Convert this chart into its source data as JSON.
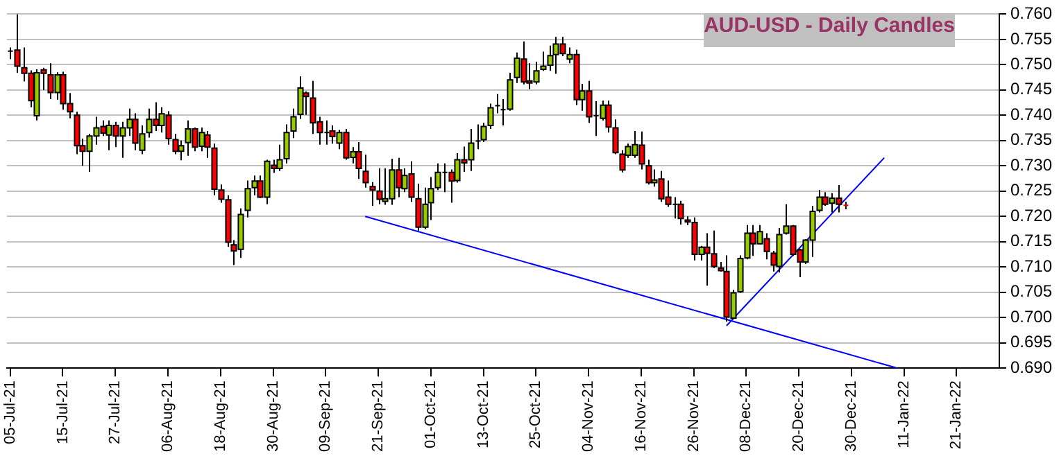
{
  "chart_data": {
    "type": "candlestick",
    "title": "AUD-USD - Daily Candles",
    "categories": [
      "05-Jul-21",
      null,
      null,
      null,
      null,
      null,
      null,
      null,
      "15-Jul-21",
      null,
      null,
      null,
      null,
      null,
      null,
      null,
      "27-Jul-21",
      null,
      null,
      null,
      null,
      null,
      null,
      null,
      "06-Aug-21",
      null,
      null,
      null,
      null,
      null,
      null,
      null,
      "18-Aug-21",
      null,
      null,
      null,
      null,
      null,
      null,
      null,
      "30-Aug-21",
      null,
      null,
      null,
      null,
      null,
      null,
      null,
      "09-Sep-21",
      null,
      null,
      null,
      null,
      null,
      null,
      null,
      "21-Sep-21",
      null,
      null,
      null,
      null,
      null,
      null,
      null,
      "01-Oct-21",
      null,
      null,
      null,
      null,
      null,
      null,
      null,
      "13-Oct-21",
      null,
      null,
      null,
      null,
      null,
      null,
      null,
      "25-Oct-21",
      null,
      null,
      null,
      null,
      null,
      null,
      null,
      "04-Nov-21",
      null,
      null,
      null,
      null,
      null,
      null,
      null,
      "16-Nov-21",
      null,
      null,
      null,
      null,
      null,
      null,
      null,
      "26-Nov-21",
      null,
      null,
      null,
      null,
      null,
      null,
      null,
      "08-Dec-21",
      null,
      null,
      null,
      null,
      null,
      null,
      null,
      "20-Dec-21",
      null,
      null,
      null,
      null,
      null,
      null,
      null,
      "30-Dec-21",
      null,
      null,
      null,
      null,
      null,
      null,
      null,
      "11-Jan-22",
      null,
      null,
      null,
      null,
      null,
      null,
      null,
      "21-Jan-22",
      null,
      null,
      null,
      null,
      null,
      null
    ],
    "ohlc": [
      [
        0.7527,
        0.7534,
        0.7511,
        0.7527
      ],
      [
        0.7529,
        0.76,
        0.7484,
        0.7497
      ],
      [
        0.7494,
        0.7534,
        0.7467,
        0.7483
      ],
      [
        0.7483,
        0.7489,
        0.7416,
        0.7429
      ],
      [
        0.7399,
        0.7491,
        0.739,
        0.7484
      ],
      [
        0.749,
        0.7494,
        0.745,
        0.7483
      ],
      [
        0.748,
        0.7503,
        0.7432,
        0.7445
      ],
      [
        0.7445,
        0.7485,
        0.7431,
        0.748
      ],
      [
        0.748,
        0.7486,
        0.7411,
        0.7423
      ],
      [
        0.7423,
        0.7444,
        0.7394,
        0.7407
      ],
      [
        0.74,
        0.7407,
        0.7323,
        0.734
      ],
      [
        0.734,
        0.7354,
        0.73,
        0.7329
      ],
      [
        0.7329,
        0.7363,
        0.7288,
        0.7359
      ],
      [
        0.7359,
        0.7397,
        0.7342,
        0.7375
      ],
      [
        0.7378,
        0.739,
        0.7359,
        0.7365
      ],
      [
        0.7361,
        0.739,
        0.7331,
        0.738
      ],
      [
        0.738,
        0.7387,
        0.7337,
        0.7359
      ],
      [
        0.7359,
        0.7387,
        0.7316,
        0.7375
      ],
      [
        0.7375,
        0.7413,
        0.7359,
        0.7392
      ],
      [
        0.7392,
        0.7404,
        0.7331,
        0.7345
      ],
      [
        0.7331,
        0.738,
        0.7323,
        0.7363
      ],
      [
        0.7366,
        0.7413,
        0.7356,
        0.7392
      ],
      [
        0.7392,
        0.7426,
        0.7369,
        0.738
      ],
      [
        0.738,
        0.7416,
        0.7366,
        0.7403
      ],
      [
        0.74,
        0.7408,
        0.7342,
        0.7354
      ],
      [
        0.7352,
        0.7363,
        0.7323,
        0.7329
      ],
      [
        0.7329,
        0.735,
        0.7311,
        0.734
      ],
      [
        0.7346,
        0.739,
        0.732,
        0.7373
      ],
      [
        0.7373,
        0.7376,
        0.7329,
        0.7337
      ],
      [
        0.7339,
        0.7376,
        0.7329,
        0.7366
      ],
      [
        0.7361,
        0.7369,
        0.7316,
        0.7337
      ],
      [
        0.7335,
        0.7344,
        0.7242,
        0.7254
      ],
      [
        0.7252,
        0.7263,
        0.7227,
        0.7234
      ],
      [
        0.7233,
        0.7242,
        0.714,
        0.7149
      ],
      [
        0.7144,
        0.7153,
        0.7104,
        0.7132
      ],
      [
        0.7135,
        0.7216,
        0.7118,
        0.7204
      ],
      [
        0.7212,
        0.7271,
        0.7198,
        0.7255
      ],
      [
        0.7257,
        0.7281,
        0.7242,
        0.727
      ],
      [
        0.727,
        0.7281,
        0.7236,
        0.7238
      ],
      [
        0.7238,
        0.7312,
        0.7224,
        0.7309
      ],
      [
        0.7301,
        0.7312,
        0.7286,
        0.7295
      ],
      [
        0.7295,
        0.7342,
        0.729,
        0.7312
      ],
      [
        0.7314,
        0.7382,
        0.7305,
        0.7366
      ],
      [
        0.7369,
        0.7413,
        0.7355,
        0.7397
      ],
      [
        0.7402,
        0.7477,
        0.7393,
        0.7454
      ],
      [
        0.7444,
        0.7447,
        0.7401,
        0.7437
      ],
      [
        0.7434,
        0.7468,
        0.7363,
        0.7385
      ],
      [
        0.7387,
        0.7397,
        0.7342,
        0.7366
      ],
      [
        0.7366,
        0.739,
        0.7342,
        0.7366
      ],
      [
        0.7369,
        0.738,
        0.7344,
        0.7358
      ],
      [
        0.7345,
        0.7371,
        0.7333,
        0.7366
      ],
      [
        0.7366,
        0.7373,
        0.7312,
        0.7316
      ],
      [
        0.7317,
        0.7337,
        0.7305,
        0.7328
      ],
      [
        0.7328,
        0.7347,
        0.7274,
        0.7295
      ],
      [
        0.7289,
        0.7322,
        0.7257,
        0.7267
      ],
      [
        0.7259,
        0.7268,
        0.7221,
        0.7252
      ],
      [
        0.725,
        0.7295,
        0.7224,
        0.7234
      ],
      [
        0.723,
        0.7295,
        0.7223,
        0.7235
      ],
      [
        0.7235,
        0.7314,
        0.7223,
        0.7292
      ],
      [
        0.7292,
        0.7316,
        0.7238,
        0.7257
      ],
      [
        0.7255,
        0.7295,
        0.7248,
        0.7281
      ],
      [
        0.7284,
        0.7309,
        0.7229,
        0.7238
      ],
      [
        0.7235,
        0.7265,
        0.7172,
        0.7179
      ],
      [
        0.7179,
        0.7257,
        0.7175,
        0.7224
      ],
      [
        0.7227,
        0.7278,
        0.7193,
        0.7255
      ],
      [
        0.7257,
        0.7305,
        0.7252,
        0.7287
      ],
      [
        0.7287,
        0.7305,
        0.7248,
        0.7287
      ],
      [
        0.7287,
        0.7293,
        0.7227,
        0.727
      ],
      [
        0.7271,
        0.7325,
        0.7267,
        0.7312
      ],
      [
        0.7312,
        0.7338,
        0.7288,
        0.7306
      ],
      [
        0.7312,
        0.7373,
        0.729,
        0.7345
      ],
      [
        0.7349,
        0.7382,
        0.7333,
        0.7349
      ],
      [
        0.7352,
        0.7385,
        0.7347,
        0.7378
      ],
      [
        0.738,
        0.7423,
        0.7373,
        0.7415
      ],
      [
        0.7419,
        0.7442,
        0.7404,
        0.7419
      ],
      [
        0.7411,
        0.7432,
        0.738,
        0.7411
      ],
      [
        0.7412,
        0.7484,
        0.7409,
        0.747
      ],
      [
        0.7475,
        0.7524,
        0.7464,
        0.7513
      ],
      [
        0.7511,
        0.7546,
        0.7461,
        0.7466
      ],
      [
        0.7468,
        0.7503,
        0.7452,
        0.7464
      ],
      [
        0.7466,
        0.7506,
        0.7461,
        0.7488
      ],
      [
        0.7491,
        0.7526,
        0.7488,
        0.7497
      ],
      [
        0.7499,
        0.7538,
        0.7488,
        0.7518
      ],
      [
        0.752,
        0.7555,
        0.7482,
        0.7541
      ],
      [
        0.7541,
        0.7555,
        0.7517,
        0.7522
      ],
      [
        0.7511,
        0.7534,
        0.7503,
        0.752
      ],
      [
        0.752,
        0.753,
        0.742,
        0.7431
      ],
      [
        0.7431,
        0.7462,
        0.7409,
        0.7448
      ],
      [
        0.7448,
        0.7468,
        0.7385,
        0.7397
      ],
      [
        0.7399,
        0.7428,
        0.7359,
        0.7399
      ],
      [
        0.7394,
        0.7429,
        0.739,
        0.742
      ],
      [
        0.742,
        0.7429,
        0.7366,
        0.7377
      ],
      [
        0.7375,
        0.7392,
        0.7323,
        0.7326
      ],
      [
        0.7323,
        0.7331,
        0.7287,
        0.7292
      ],
      [
        0.7321,
        0.7344,
        0.7316,
        0.7338
      ],
      [
        0.7321,
        0.7369,
        0.7316,
        0.7342
      ],
      [
        0.7341,
        0.7368,
        0.7293,
        0.7304
      ],
      [
        0.73,
        0.7312,
        0.7263,
        0.7267
      ],
      [
        0.7267,
        0.7293,
        0.7259,
        0.7272
      ],
      [
        0.7274,
        0.729,
        0.7229,
        0.7235
      ],
      [
        0.7238,
        0.7271,
        0.7219,
        0.7224
      ],
      [
        0.7224,
        0.7238,
        0.7196,
        0.7224
      ],
      [
        0.7224,
        0.7231,
        0.7184,
        0.7196
      ],
      [
        0.7193,
        0.72,
        0.7183,
        0.7189
      ],
      [
        0.7188,
        0.7198,
        0.7113,
        0.7125
      ],
      [
        0.7125,
        0.7142,
        0.7113,
        0.7139
      ],
      [
        0.7139,
        0.7167,
        0.7063,
        0.7127
      ],
      [
        0.7126,
        0.7172,
        0.7098,
        0.7101
      ],
      [
        0.7098,
        0.711,
        0.7091,
        0.7093
      ],
      [
        0.7091,
        0.7123,
        0.6992,
        0.7001
      ],
      [
        0.6999,
        0.7055,
        0.6997,
        0.7049
      ],
      [
        0.7051,
        0.7123,
        0.7049,
        0.7117
      ],
      [
        0.7118,
        0.7183,
        0.7115,
        0.7167
      ],
      [
        0.7167,
        0.7183,
        0.7122,
        0.7146
      ],
      [
        0.7146,
        0.7183,
        0.7145,
        0.717
      ],
      [
        0.7156,
        0.7167,
        0.7115,
        0.7131
      ],
      [
        0.7127,
        0.7132,
        0.7091,
        0.7104
      ],
      [
        0.7101,
        0.7177,
        0.7089,
        0.7164
      ],
      [
        0.7167,
        0.7224,
        0.7164,
        0.7181
      ],
      [
        0.7181,
        0.7183,
        0.7122,
        0.7125
      ],
      [
        0.7134,
        0.7136,
        0.708,
        0.711
      ],
      [
        0.711,
        0.7155,
        0.7106,
        0.7153
      ],
      [
        0.7153,
        0.7221,
        0.712,
        0.721
      ],
      [
        0.7212,
        0.7252,
        0.7208,
        0.7238
      ],
      [
        0.7238,
        0.7248,
        0.7221,
        0.7224
      ],
      [
        0.7226,
        0.7246,
        0.7208,
        0.7236
      ],
      [
        0.7236,
        0.7262,
        0.7208,
        0.7224
      ],
      [
        0.7222,
        0.7229,
        0.7214,
        0.722
      ],
      null,
      null,
      null,
      null,
      null,
      null,
      null,
      null,
      null,
      null,
      null,
      null,
      null,
      null,
      null,
      null,
      null,
      null,
      null,
      null,
      null,
      null,
      null
    ],
    "colors": [
      "#000000",
      "#ff0000",
      "#ff0000",
      "#ff0000",
      "#99cc00",
      "#ff0000",
      "#ff0000",
      "#99cc00",
      "#ff0000",
      "#ff0000",
      "#ff0000",
      "#ff0000",
      "#99cc00",
      "#99cc00",
      "#ff0000",
      "#99cc00",
      "#ff0000",
      "#99cc00",
      "#99cc00",
      "#ff0000",
      "#99cc00",
      "#99cc00",
      "#ff0000",
      "#99cc00",
      "#ff0000",
      "#ff0000",
      "#99cc00",
      "#99cc00",
      "#ff0000",
      "#99cc00",
      "#ff0000",
      "#ff0000",
      "#ff0000",
      "#ff0000",
      "#ff0000",
      "#99cc00",
      "#99cc00",
      "#99cc00",
      "#ff0000",
      "#99cc00",
      "#ff0000",
      "#99cc00",
      "#99cc00",
      "#99cc00",
      "#99cc00",
      "#ff0000",
      "#ff0000",
      "#ff0000",
      "#000000",
      "#ff0000",
      "#99cc00",
      "#ff0000",
      "#99cc00",
      "#ff0000",
      "#ff0000",
      "#ff0000",
      "#ff0000",
      "#99cc00",
      "#99cc00",
      "#ff0000",
      "#99cc00",
      "#ff0000",
      "#ff0000",
      "#99cc00",
      "#99cc00",
      "#99cc00",
      "#000000",
      "#ff0000",
      "#99cc00",
      "#ff0000",
      "#99cc00",
      "#000000",
      "#99cc00",
      "#99cc00",
      "#000000",
      "#000000",
      "#99cc00",
      "#99cc00",
      "#ff0000",
      "#ff0000",
      "#99cc00",
      "#99cc00",
      "#99cc00",
      "#99cc00",
      "#ff0000",
      "#99cc00",
      "#ff0000",
      "#99cc00",
      "#ff0000",
      "#000000",
      "#99cc00",
      "#ff0000",
      "#ff0000",
      "#ff0000",
      "#99cc00",
      "#99cc00",
      "#ff0000",
      "#ff0000",
      "#99cc00",
      "#ff0000",
      "#ff0000",
      "#000000",
      "#ff0000",
      "#ff0000",
      "#ff0000",
      "#99cc00",
      "#ff0000",
      "#ff0000",
      "#ff0000",
      "#ff0000",
      "#99cc00",
      "#99cc00",
      "#99cc00",
      "#ff0000",
      "#99cc00",
      "#ff0000",
      "#ff0000",
      "#99cc00",
      "#99cc00",
      "#ff0000",
      "#ff0000",
      "#99cc00",
      "#99cc00",
      "#99cc00",
      "#ff0000",
      "#99cc00",
      "#ff0000",
      "#ff0000",
      null,
      null,
      null,
      null,
      null,
      null,
      null,
      null,
      null,
      null,
      null,
      null,
      null,
      null,
      null,
      null,
      null,
      null,
      null,
      null,
      null,
      null,
      null
    ],
    "series": [
      {
        "type": "line",
        "color": "#0000ff",
        "values": [
          null,
          null,
          null,
          null,
          null,
          null,
          null,
          null,
          null,
          null,
          null,
          null,
          null,
          null,
          null,
          null,
          null,
          null,
          null,
          null,
          null,
          null,
          null,
          null,
          null,
          null,
          null,
          null,
          null,
          null,
          null,
          null,
          null,
          null,
          null,
          null,
          null,
          null,
          null,
          null,
          null,
          null,
          null,
          null,
          null,
          null,
          null,
          null,
          null,
          null,
          null,
          null,
          null,
          null,
          0.72,
          null,
          null,
          null,
          null,
          null,
          null,
          null,
          null,
          null,
          null,
          null,
          null,
          null,
          null,
          null,
          null,
          null,
          null,
          null,
          null,
          null,
          null,
          null,
          null,
          null,
          null,
          null,
          null,
          null,
          null,
          null,
          null,
          null,
          null,
          null,
          null,
          null,
          null,
          null,
          null,
          null,
          null,
          null,
          null,
          null,
          null,
          null,
          null,
          null,
          null,
          null,
          null,
          null,
          null,
          null,
          null,
          null,
          null,
          null,
          null,
          null,
          null,
          null,
          null,
          null,
          null,
          null,
          null,
          null,
          null,
          null,
          null,
          null,
          null,
          null,
          null,
          null,
          null,
          null,
          null,
          0.69,
          null,
          null,
          null,
          null,
          null,
          null,
          null,
          null,
          null,
          null,
          null,
          null,
          null,
          null,
          null
        ]
      },
      {
        "type": "line",
        "color": "#0000ff",
        "values": [
          null,
          null,
          null,
          null,
          null,
          null,
          null,
          null,
          null,
          null,
          null,
          null,
          null,
          null,
          null,
          null,
          null,
          null,
          null,
          null,
          null,
          null,
          null,
          null,
          null,
          null,
          null,
          null,
          null,
          null,
          null,
          null,
          null,
          null,
          null,
          null,
          null,
          null,
          null,
          null,
          null,
          null,
          null,
          null,
          null,
          null,
          null,
          null,
          null,
          null,
          null,
          null,
          null,
          null,
          null,
          null,
          null,
          null,
          null,
          null,
          null,
          null,
          null,
          null,
          null,
          null,
          null,
          null,
          null,
          null,
          null,
          null,
          null,
          null,
          null,
          null,
          null,
          null,
          null,
          null,
          null,
          null,
          null,
          null,
          null,
          null,
          null,
          null,
          null,
          null,
          null,
          null,
          null,
          null,
          null,
          null,
          null,
          null,
          null,
          null,
          null,
          null,
          null,
          null,
          null,
          null,
          null,
          null,
          null,
          0.6984,
          null,
          null,
          null,
          null,
          null,
          null,
          null,
          null,
          null,
          null,
          null,
          null,
          null,
          null,
          null,
          null,
          null,
          null,
          null,
          null,
          null,
          null,
          null,
          0.7316,
          null,
          null,
          null,
          null,
          null,
          null,
          null,
          null,
          null,
          null,
          null,
          null,
          null,
          null,
          null,
          null,
          null
        ]
      }
    ],
    "ylim": [
      0.69,
      0.76
    ],
    "yticks": [
      {
        "value": 0.69,
        "label": "0.690"
      },
      {
        "value": 0.695,
        "label": "0.695"
      },
      {
        "value": 0.7,
        "label": "0.700"
      },
      {
        "value": 0.705,
        "label": "0.705"
      },
      {
        "value": 0.71,
        "label": "0.710"
      },
      {
        "value": 0.715,
        "label": "0.715"
      },
      {
        "value": 0.72,
        "label": "0.720"
      },
      {
        "value": 0.725,
        "label": "0.725"
      },
      {
        "value": 0.73,
        "label": "0.730"
      },
      {
        "value": 0.735,
        "label": "0.735"
      },
      {
        "value": 0.74,
        "label": "0.740"
      },
      {
        "value": 0.745,
        "label": "0.745"
      },
      {
        "value": 0.75,
        "label": "0.750"
      },
      {
        "value": 0.755,
        "label": "0.755"
      },
      {
        "value": 0.76,
        "label": "0.760"
      }
    ],
    "grid": "y"
  }
}
